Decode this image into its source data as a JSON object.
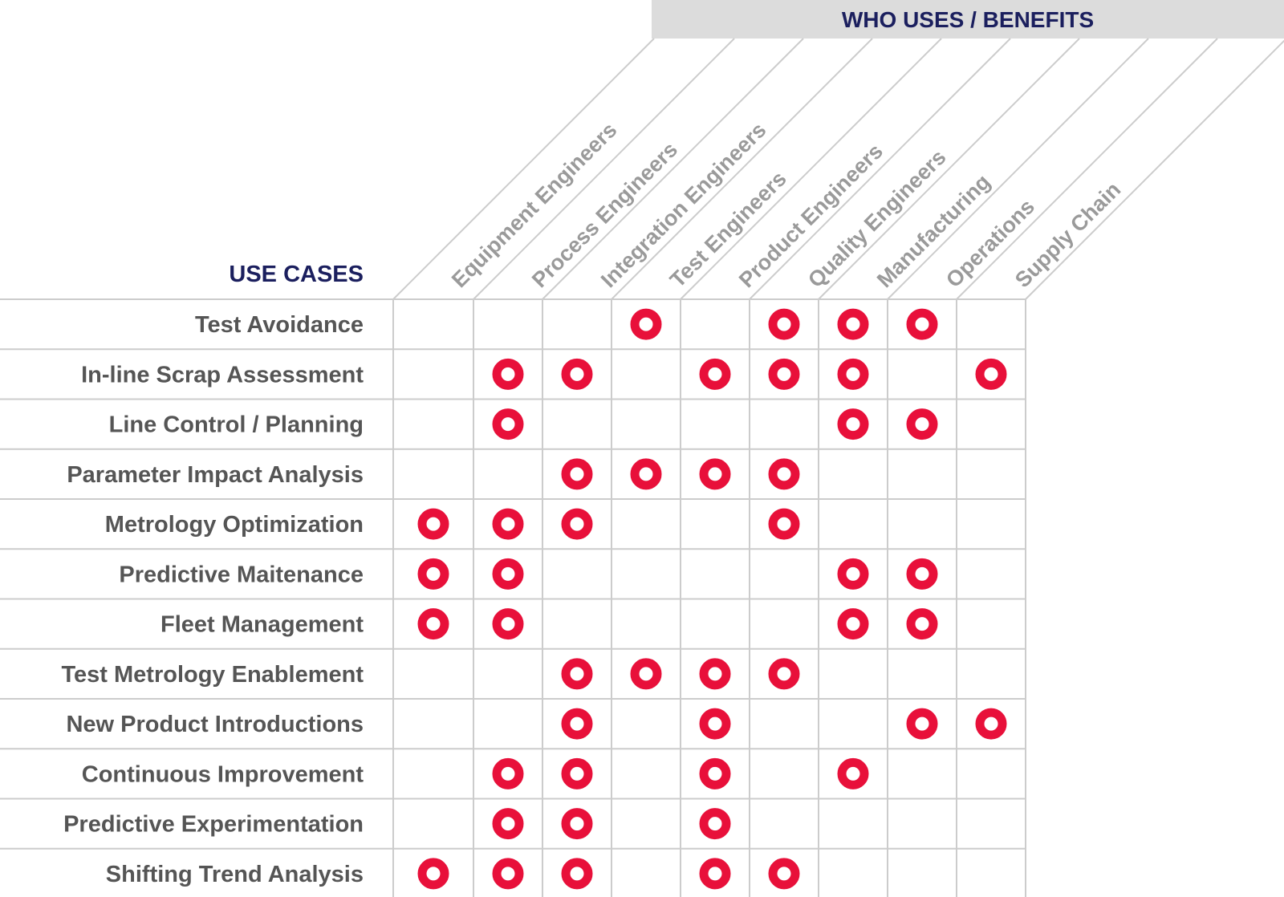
{
  "header": {
    "who_uses_title": "WHO USES / BENEFITS",
    "use_cases_title": "USE CASES"
  },
  "roles": [
    "Equipment Engineers",
    "Process Engineers",
    "Integration Engineers",
    "Test Engineers",
    "Product Engineers",
    "Quality Engineers",
    "Manufacturing",
    "Operations",
    "Supply Chain"
  ],
  "use_cases": [
    {
      "label": "Test Avoidance",
      "marks": [
        3,
        5,
        6,
        7
      ]
    },
    {
      "label": "In-line Scrap Assessment",
      "marks": [
        1,
        2,
        4,
        5,
        6,
        8
      ]
    },
    {
      "label": "Line Control / Planning",
      "marks": [
        1,
        6,
        7
      ]
    },
    {
      "label": "Parameter Impact Analysis",
      "marks": [
        2,
        3,
        4,
        5
      ]
    },
    {
      "label": "Metrology Optimization",
      "marks": [
        0,
        1,
        2,
        5
      ]
    },
    {
      "label": "Predictive Maitenance",
      "marks": [
        0,
        1,
        6,
        7
      ]
    },
    {
      "label": "Fleet Management",
      "marks": [
        0,
        1,
        6,
        7
      ]
    },
    {
      "label": "Test Metrology Enablement",
      "marks": [
        2,
        3,
        4,
        5
      ]
    },
    {
      "label": "New Product Introductions",
      "marks": [
        2,
        4,
        7,
        8
      ]
    },
    {
      "label": "Continuous Improvement",
      "marks": [
        1,
        2,
        4,
        6
      ]
    },
    {
      "label": "Predictive Experimentation",
      "marks": [
        1,
        2,
        4
      ]
    },
    {
      "label": "Shifting Trend Analysis",
      "marks": [
        0,
        1,
        2,
        4,
        5
      ]
    }
  ],
  "colors": {
    "title": "#1b1f5e",
    "text": "#555555",
    "role_text": "#9a9a9a",
    "grid": "#cccccc",
    "header_band": "#dcdcdc",
    "mark": "#e8103a"
  }
}
